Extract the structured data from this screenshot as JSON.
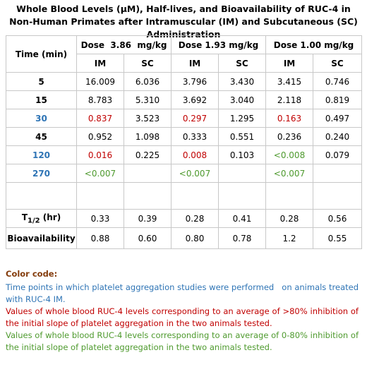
{
  "title": "Whole Blood Levels (μM), Half-lives, and Bioavailability of RUC-4 in Non-Human Primates after Intramuscular (IM) and Subcutaneous (SC) Administration",
  "table": {
    "header": {
      "time": "Time (min)",
      "doses": [
        "Dose  3.86  mg/kg",
        "Dose 1.93 mg/kg",
        "Dose 1.00 mg/kg"
      ],
      "routes": [
        "IM",
        "SC",
        "IM",
        "SC",
        "IM",
        "SC"
      ]
    },
    "rows": [
      {
        "label": "5",
        "cells": [
          "16.009",
          "6.036",
          "3.796",
          "3.430",
          "3.415",
          "0.746"
        ]
      },
      {
        "label": "15",
        "cells": [
          "8.783",
          "5.310",
          "3.692",
          "3.040",
          "2.118",
          "0.819"
        ]
      },
      {
        "label": {
          "text": "30",
          "color": "#2e74b5"
        },
        "cells": [
          {
            "text": "0.837",
            "color": "#c00000"
          },
          "3.523",
          {
            "text": "0.297",
            "color": "#c00000"
          },
          "1.295",
          {
            "text": "0.163",
            "color": "#c00000"
          },
          "0.497"
        ]
      },
      {
        "label": "45",
        "cells": [
          "0.952",
          "1.098",
          "0.333",
          "0.551",
          "0.236",
          "0.240"
        ]
      },
      {
        "label": {
          "text": "120",
          "color": "#2e74b5"
        },
        "cells": [
          {
            "text": "0.016",
            "color": "#c00000"
          },
          "0.225",
          {
            "text": "0.008",
            "color": "#c00000"
          },
          "0.103",
          {
            "text": "<0.008",
            "color": "#4e9a2e"
          },
          "0.079"
        ]
      },
      {
        "label": {
          "text": "270",
          "color": "#2e74b5"
        },
        "cells": [
          {
            "text": "<0.007",
            "color": "#4e9a2e"
          },
          null,
          {
            "text": "<0.007",
            "color": "#4e9a2e"
          },
          null,
          {
            "text": "<0.007",
            "color": "#4e9a2e"
          },
          null
        ]
      },
      {
        "label": null,
        "cells": [
          null,
          null,
          null,
          null,
          null,
          null
        ]
      },
      {
        "label": {
          "main": "T",
          "sub": "1/2",
          "rest": " (hr)"
        },
        "cells": [
          "0.33",
          "0.39",
          "0.28",
          "0.41",
          "0.28",
          "0.56"
        ]
      },
      {
        "label": "Bioavailability",
        "cells": [
          "0.88",
          "0.60",
          "0.80",
          "0.78",
          "1.2",
          "0.55"
        ]
      }
    ]
  },
  "legend": {
    "heading": "Color code:",
    "heading_color": "#843c0c",
    "items": [
      {
        "text": "Time points in which platelet aggregation studies were performed   on animals treated with RUC-4 IM.",
        "color": "#2e74b5"
      },
      {
        "text": "Values of whole blood RUC-4 levels corresponding to an average of >80% inhibition of the initial slope of platelet aggregation in the two animals tested.",
        "color": "#c00000"
      },
      {
        "text": "Values of whole blood RUC-4 levels corresponding to an average of 0-80% inhibition of the initial slope of platelet aggregation in the two animals tested.",
        "color": "#4e9a2e"
      }
    ]
  }
}
